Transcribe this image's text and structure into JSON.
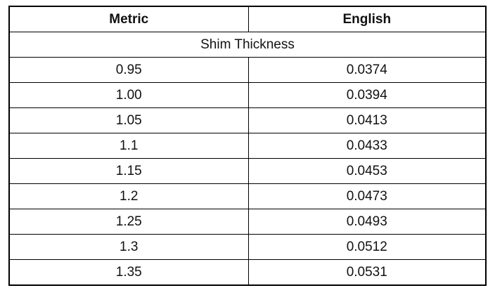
{
  "table": {
    "header": [
      "Metric",
      "English"
    ],
    "section": "Shim Thickness",
    "rows": [
      [
        "0.95",
        "0.0374"
      ],
      [
        "1.00",
        "0.0394"
      ],
      [
        "1.05",
        "0.0413"
      ],
      [
        "1.1",
        "0.0433"
      ],
      [
        "1.15",
        "0.0453"
      ],
      [
        "1.2",
        "0.0473"
      ],
      [
        "1.25",
        "0.0493"
      ],
      [
        "1.3",
        "0.0512"
      ],
      [
        "1.35",
        "0.0531"
      ]
    ]
  }
}
